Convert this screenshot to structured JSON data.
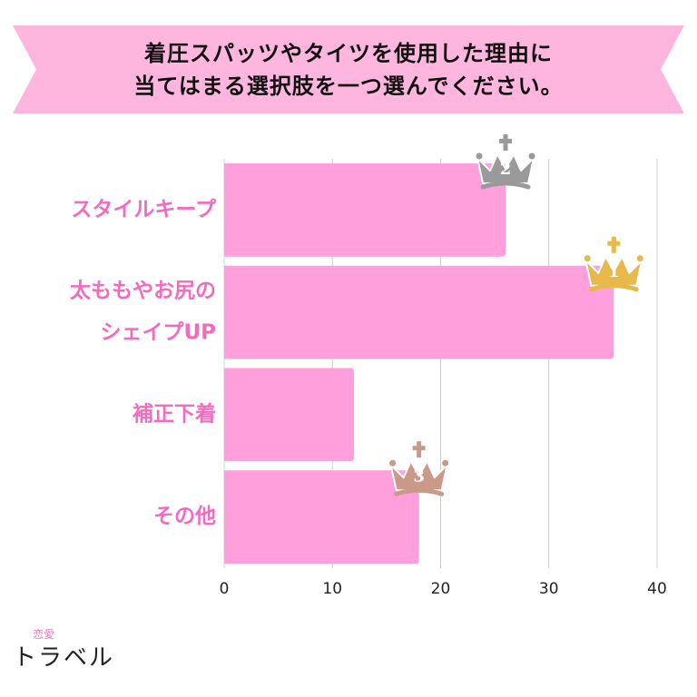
{
  "header": {
    "line1": "着圧スパッツやタイツを使用した理由に",
    "line2": "当てはまる選択肢を一つ選んでください。"
  },
  "colors": {
    "banner": "#ffb6de",
    "bar": "#ffa0dc",
    "label": "#f26bbf",
    "gold": "#e7b94a",
    "silver": "#9a9a9a",
    "bronze": "#c99a8a"
  },
  "chart_data": {
    "type": "bar",
    "orientation": "horizontal",
    "categories": [
      "スタイルキープ",
      "太ももやお尻のシェイプUP",
      "補正下着",
      "その他"
    ],
    "category_lines": [
      [
        "スタイルキープ"
      ],
      [
        "太ももやお尻の",
        "シェイプUP"
      ],
      [
        "補正下着"
      ],
      [
        "その他"
      ]
    ],
    "values": [
      26,
      36,
      12,
      18
    ],
    "xlim": [
      0,
      40
    ],
    "xticks": [
      0,
      10,
      20,
      30,
      40
    ],
    "grid": true,
    "title": "",
    "xlabel": "",
    "ylabel": "",
    "rank_badges": [
      {
        "category": "スタイルキープ",
        "rank": "2",
        "color": "silver"
      },
      {
        "category": "太ももやお尻のシェイプUP",
        "rank": "1",
        "color": "gold"
      },
      {
        "category": "その他",
        "rank": "3",
        "color": "bronze"
      }
    ]
  },
  "logo": {
    "small": "恋愛",
    "main": "トラベル"
  }
}
